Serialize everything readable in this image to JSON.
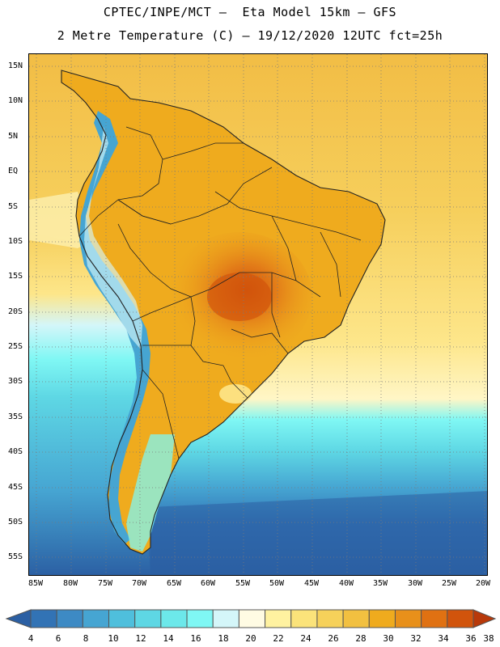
{
  "header": {
    "line1": "CPTEC/INPE/MCT –  Eta Model 15km – GFS",
    "line2": "2 Metre Temperature (C) – 19/12/2020 12UTC fct=25h"
  },
  "axes": {
    "lat_labels": [
      "15N",
      "10N",
      "5N",
      "EQ",
      "5S",
      "10S",
      "15S",
      "20S",
      "25S",
      "30S",
      "35S",
      "40S",
      "45S",
      "50S",
      "55S"
    ],
    "lon_labels": [
      "85W",
      "80W",
      "75W",
      "70W",
      "65W",
      "60W",
      "55W",
      "50W",
      "45W",
      "40W",
      "35W",
      "30W",
      "25W",
      "20W"
    ]
  },
  "colorbar": {
    "labels": [
      "4",
      "6",
      "8",
      "10",
      "12",
      "14",
      "16",
      "18",
      "20",
      "22",
      "24",
      "26",
      "28",
      "30",
      "32",
      "34",
      "36",
      "38"
    ],
    "colors": [
      "#2b5fa3",
      "#3273b5",
      "#3d8ac4",
      "#46a5d2",
      "#4fbfdc",
      "#5ed7e4",
      "#6ce8ea",
      "#7ff7f4",
      "#d4f6f9",
      "#fffbe3",
      "#fff2a0",
      "#fbe37a",
      "#f6d15a",
      "#f2c040",
      "#efab1e",
      "#e8901a",
      "#e07112",
      "#d1540c",
      "#b8390a"
    ]
  },
  "colors": {
    "ocean_warm": "#f3c44a",
    "ocean_mid": "#fde68a",
    "ocean_cool": "#5ed7e4",
    "ocean_cold": "#2b5fa3",
    "land_warm": "#eeaa2e",
    "land_hot": "#e27a18",
    "andes": "#3d8ac4"
  }
}
